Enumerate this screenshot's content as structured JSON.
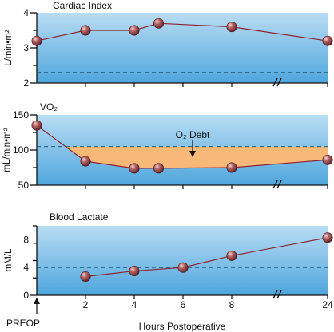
{
  "chart_data": [
    {
      "type": "line",
      "title": "Cardiac Index",
      "ylabel": "L/min•m²",
      "ylim": [
        2,
        4
      ],
      "yticks": [
        "2",
        "3",
        "4"
      ],
      "reference_line": 2.3,
      "points": [
        {
          "x": 0,
          "y": 3.2
        },
        {
          "x": 2,
          "y": 3.5
        },
        {
          "x": 4,
          "y": 3.5
        },
        {
          "x": 5,
          "y": 3.7
        },
        {
          "x": 8,
          "y": 3.6
        },
        {
          "x": 24,
          "y": 3.2
        }
      ]
    },
    {
      "type": "area",
      "title": "VO₂",
      "ylabel": "mL/min•m²",
      "ylim": [
        50,
        150
      ],
      "yticks": [
        "50",
        "100",
        "150"
      ],
      "reference_line": 105,
      "annotation": "O₂ Debt",
      "points": [
        {
          "x": 0,
          "y": 135
        },
        {
          "x": 2,
          "y": 84
        },
        {
          "x": 4,
          "y": 74
        },
        {
          "x": 5,
          "y": 74
        },
        {
          "x": 8,
          "y": 75
        },
        {
          "x": 24,
          "y": 86
        }
      ]
    },
    {
      "type": "line",
      "title": "Blood Lactate",
      "ylabel": "mM/L",
      "ylim": [
        0,
        10
      ],
      "yticks": [
        "0",
        "4",
        "8"
      ],
      "reference_line": 4,
      "points": [
        {
          "x": 2,
          "y": 2.7
        },
        {
          "x": 4,
          "y": 3.5
        },
        {
          "x": 6,
          "y": 4.0
        },
        {
          "x": 8,
          "y": 5.7
        },
        {
          "x": 24,
          "y": 8.3
        }
      ]
    }
  ],
  "x_axis": {
    "xlabel": "Hours Postoperative",
    "ticks": [
      {
        "x": 2,
        "label": "2"
      },
      {
        "x": 4,
        "label": "4"
      },
      {
        "x": 6,
        "label": "6"
      },
      {
        "x": 8,
        "label": "8"
      },
      {
        "x": 24,
        "label": "24"
      }
    ],
    "preop_label": "PREOP"
  },
  "colors": {
    "panel_top": "#b9dcf3",
    "panel_bottom": "#4fa6dd",
    "line": "#8e2332",
    "debt_fill": "#f8b877",
    "reference": "#1b5a78"
  }
}
